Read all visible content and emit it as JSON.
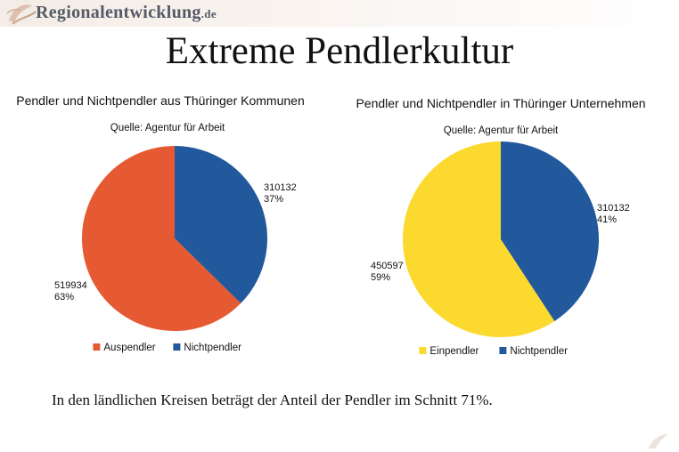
{
  "header": {
    "logo_text": "Regionalentwicklung",
    "logo_suffix": ".de",
    "brand_colors": {
      "text": "#555b66",
      "leaf": "#c9a28a"
    }
  },
  "slide": {
    "title": "Extreme Pendlerkultur",
    "footnote": "In den ländlichen Kreisen beträgt der Anteil der Pendler im Schnitt 71%."
  },
  "chart_data": [
    {
      "type": "pie",
      "title": "Pendler und Nichtpendler aus Thüringer Kommunen",
      "subtitle": "Quelle: Agentur für Arbeit",
      "legend_position": "bottom",
      "slices": [
        {
          "name": "Nichtpendler",
          "value": 310132,
          "percent": "37%",
          "color": "#22589c"
        },
        {
          "name": "Auspendler",
          "value": 519934,
          "percent": "63%",
          "color": "#e65a33"
        }
      ],
      "legend": [
        {
          "name": "Auspendler",
          "color": "#e65a33"
        },
        {
          "name": "Nichtpendler",
          "color": "#22589c"
        }
      ]
    },
    {
      "type": "pie",
      "title": "Pendler und Nichtpendler in Thüringer Unternehmen",
      "subtitle": "Quelle: Agentur für Arbeit",
      "legend_position": "bottom",
      "slices": [
        {
          "name": "Nichtpendler",
          "value": 310132,
          "percent": "41%",
          "color": "#22589c"
        },
        {
          "name": "Einpendler",
          "value": 450597,
          "percent": "59%",
          "color": "#fcd92e"
        }
      ],
      "legend": [
        {
          "name": "Einpendler",
          "color": "#fcd92e"
        },
        {
          "name": "Nichtpendler",
          "color": "#22589c"
        }
      ]
    }
  ]
}
